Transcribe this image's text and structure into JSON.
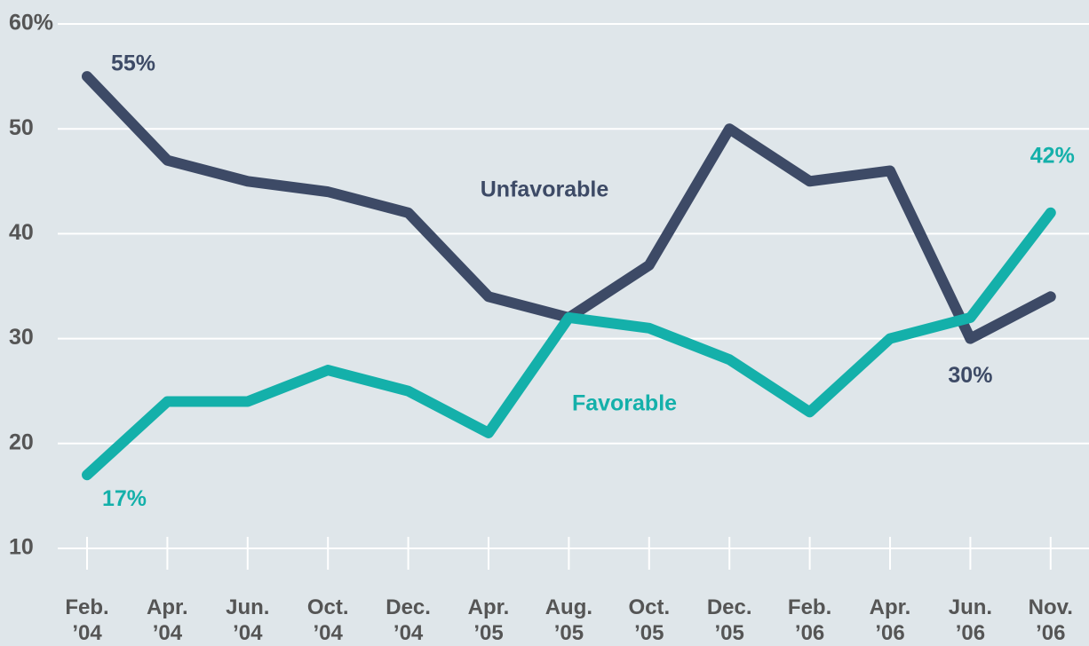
{
  "chart_data": {
    "type": "line",
    "categories": [
      "Feb.\n’04",
      "Apr.\n’04",
      "Jun.\n’04",
      "Oct.\n’04",
      "Dec.\n’04",
      "Apr.\n’05",
      "Aug.\n’05",
      "Oct.\n’05",
      "Dec.\n’05",
      "Feb.\n’06",
      "Apr.\n’06",
      "Jun.\n’06",
      "Nov.\n’06"
    ],
    "series": [
      {
        "name": "Unfavorable",
        "color": "#3d4a66",
        "values": [
          55,
          47,
          45,
          44,
          42,
          34,
          32,
          37,
          50,
          45,
          46,
          30,
          34
        ],
        "value_labels": [
          "55%",
          null,
          null,
          null,
          null,
          null,
          null,
          null,
          null,
          null,
          null,
          "30%",
          null
        ]
      },
      {
        "name": "Favorable",
        "color": "#14b0aa",
        "values": [
          17,
          24,
          24,
          27,
          25,
          21,
          32,
          31,
          28,
          23,
          30,
          32,
          42
        ],
        "value_labels": [
          "17%",
          null,
          null,
          null,
          null,
          null,
          null,
          null,
          null,
          null,
          null,
          null,
          "42%"
        ]
      }
    ],
    "ylim": [
      10,
      60
    ],
    "yticks": [
      10,
      20,
      30,
      40,
      50,
      {
        "value": 60,
        "label": "60%"
      }
    ],
    "grid": true
  }
}
